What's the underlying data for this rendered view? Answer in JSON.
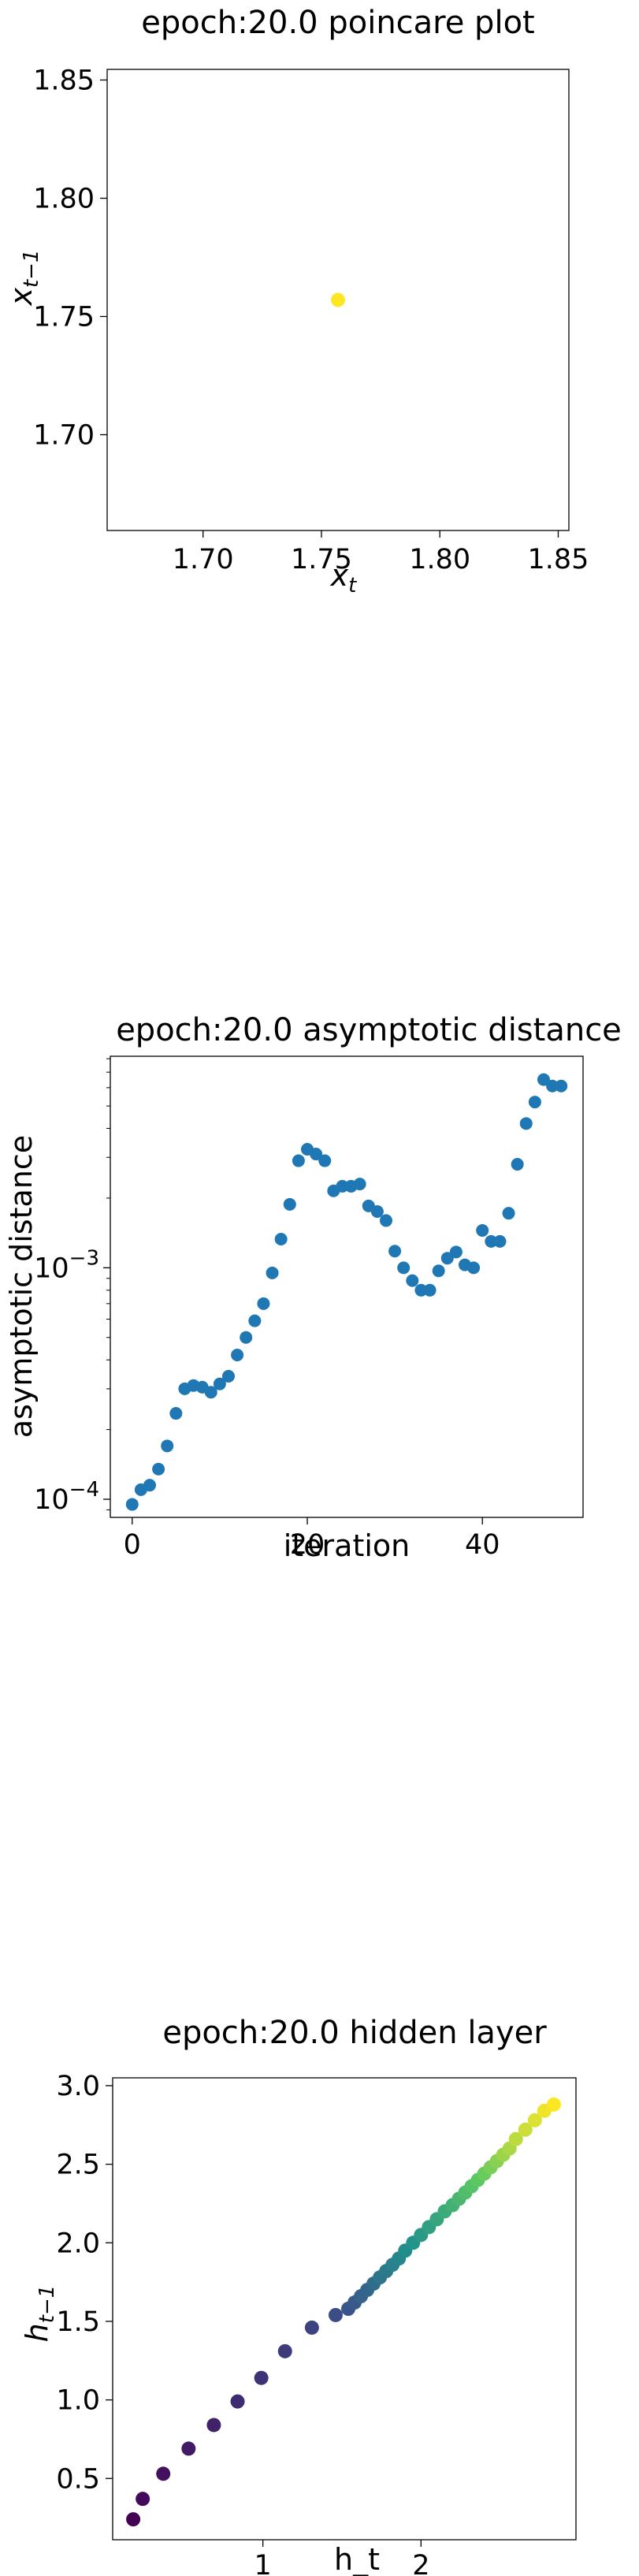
{
  "chart_data": [
    {
      "type": "scatter",
      "title": "epoch:20.0 poincare plot",
      "xlabel": "x",
      "xlabel_sub": "t",
      "ylabel": "x",
      "ylabel_sub": "t−1",
      "xlim": [
        1.6595,
        1.8545
      ],
      "ylim": [
        1.6595,
        1.8545
      ],
      "xticks": [
        {
          "value": 1.7,
          "label": "1.70"
        },
        {
          "value": 1.75,
          "label": "1.75"
        },
        {
          "value": 1.8,
          "label": "1.80"
        },
        {
          "value": 1.85,
          "label": "1.85"
        }
      ],
      "yticks": [
        {
          "value": 1.7,
          "label": "1.70"
        },
        {
          "value": 1.75,
          "label": "1.75"
        },
        {
          "value": 1.8,
          "label": "1.80"
        },
        {
          "value": 1.85,
          "label": "1.85"
        }
      ],
      "points": [
        {
          "x": 1.757,
          "y": 1.757
        }
      ],
      "point_color": "#fde725"
    },
    {
      "type": "scatter",
      "title": "epoch:20.0 asymptotic distance",
      "xlabel": "iteration",
      "ylabel": "asymptotic distance",
      "yscale": "log",
      "xlim": [
        -2.5,
        51.5
      ],
      "ylim": [
        8.35e-05,
        0.0082
      ],
      "xticks": [
        {
          "value": 0,
          "label": "0"
        },
        {
          "value": 20,
          "label": "20"
        },
        {
          "value": 40,
          "label": "40"
        }
      ],
      "yticks": [
        {
          "value": 0.0001,
          "base": "10",
          "exp": "−4"
        },
        {
          "value": 0.001,
          "base": "10",
          "exp": "−3"
        }
      ],
      "minor_yticks": [
        9e-05,
        0.0002,
        0.0003,
        0.0004,
        0.0005,
        0.0006,
        0.0007,
        0.0008,
        0.0009,
        0.002,
        0.003,
        0.004,
        0.005,
        0.006,
        0.007,
        0.008
      ],
      "x": [
        0,
        1,
        2,
        3,
        4,
        5,
        6,
        7,
        8,
        9,
        10,
        11,
        12,
        13,
        14,
        15,
        16,
        17,
        18,
        19,
        20,
        21,
        22,
        23,
        24,
        25,
        26,
        27,
        28,
        29,
        30,
        31,
        32,
        33,
        34,
        35,
        36,
        37,
        38,
        39,
        40,
        41,
        42,
        43,
        44,
        45,
        46,
        47,
        48,
        49
      ],
      "y": [
        9.5e-05,
        0.00011,
        0.000115,
        0.000135,
        0.00017,
        0.000235,
        0.0003,
        0.00031,
        0.000305,
        0.00029,
        0.000315,
        0.00034,
        0.00042,
        0.0005,
        0.00059,
        0.0007,
        0.00095,
        0.00133,
        0.00188,
        0.0029,
        0.00325,
        0.0031,
        0.0029,
        0.00215,
        0.00225,
        0.00225,
        0.0023,
        0.00185,
        0.00175,
        0.0016,
        0.00118,
        0.001,
        0.00088,
        0.0008,
        0.0008,
        0.00097,
        0.0011,
        0.00117,
        0.00103,
        0.001,
        0.00145,
        0.0013,
        0.0013,
        0.00172,
        0.0028,
        0.0042,
        0.0052,
        0.0065,
        0.0061,
        0.0061
      ],
      "point_color": "#1f77b4"
    },
    {
      "type": "scatter",
      "title": "epoch:20.0 hidden layer",
      "xlabel": "h_t",
      "ylabel": "h",
      "ylabel_sub": "t−1",
      "xlim": [
        0.05,
        2.98
      ],
      "ylim": [
        0.11,
        3.05
      ],
      "xticks": [
        {
          "value": 1,
          "label": "1"
        },
        {
          "value": 2,
          "label": "2"
        }
      ],
      "yticks": [
        {
          "value": 0.5,
          "label": "0.5"
        },
        {
          "value": 1.0,
          "label": "1.0"
        },
        {
          "value": 1.5,
          "label": "1.5"
        },
        {
          "value": 2.0,
          "label": "2.0"
        },
        {
          "value": 2.5,
          "label": "2.5"
        },
        {
          "value": 3.0,
          "label": "3.0"
        }
      ],
      "x": [
        0.18,
        0.24,
        0.37,
        0.53,
        0.69,
        0.84,
        0.99,
        1.14,
        1.31,
        1.46,
        1.54,
        1.58,
        1.62,
        1.66,
        1.7,
        1.74,
        1.78,
        1.82,
        1.86,
        1.9,
        1.95,
        2.0,
        2.05,
        2.1,
        2.15,
        2.2,
        2.24,
        2.28,
        2.32,
        2.36,
        2.4,
        2.44,
        2.48,
        2.52,
        2.56,
        2.6,
        2.66,
        2.72,
        2.78,
        2.84
      ],
      "y": [
        0.24,
        0.37,
        0.53,
        0.69,
        0.84,
        0.99,
        1.14,
        1.31,
        1.46,
        1.54,
        1.58,
        1.62,
        1.66,
        1.7,
        1.74,
        1.78,
        1.82,
        1.86,
        1.9,
        1.95,
        2.0,
        2.05,
        2.1,
        2.15,
        2.2,
        2.24,
        2.28,
        2.32,
        2.36,
        2.4,
        2.44,
        2.48,
        2.52,
        2.56,
        2.6,
        2.66,
        2.72,
        2.78,
        2.84,
        2.88
      ],
      "colormap": "viridis"
    }
  ]
}
